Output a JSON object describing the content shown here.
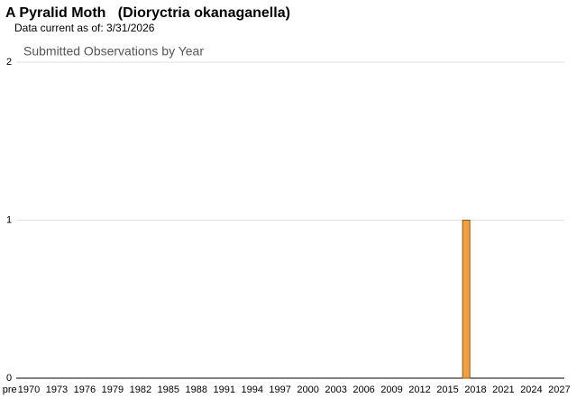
{
  "chart_data": {
    "type": "bar",
    "title": "A Pyralid Moth   (Dioryctria okanaganella)",
    "subtitle": "Data current as of: 3/31/2026",
    "chart_title": "Submitted Observations by Year",
    "categories": [
      "pre",
      "1970",
      null,
      null,
      "1973",
      null,
      null,
      "1976",
      null,
      null,
      "1979",
      null,
      null,
      "1982",
      null,
      null,
      "1985",
      null,
      null,
      "1988",
      null,
      null,
      "1991",
      null,
      null,
      "1994",
      null,
      null,
      "1997",
      null,
      null,
      "2000",
      null,
      null,
      "2003",
      null,
      null,
      "2006",
      null,
      null,
      "2009",
      null,
      null,
      "2012",
      null,
      null,
      "2015",
      null,
      null,
      "2018",
      null,
      null,
      "2021",
      null,
      null,
      "2024",
      null,
      null,
      "2027"
    ],
    "values": [
      0,
      0,
      0,
      0,
      0,
      0,
      0,
      0,
      0,
      0,
      0,
      0,
      0,
      0,
      0,
      0,
      0,
      0,
      0,
      0,
      0,
      0,
      0,
      0,
      0,
      0,
      0,
      0,
      0,
      0,
      0,
      0,
      0,
      0,
      0,
      0,
      0,
      0,
      0,
      0,
      0,
      0,
      0,
      0,
      0,
      0,
      0,
      0,
      1,
      0,
      0,
      0,
      0,
      0,
      0,
      0,
      0,
      0,
      0
    ],
    "color": "#f2a03d",
    "ylim": [
      0,
      2
    ],
    "yticks": [
      0,
      1,
      2
    ],
    "grid": true
  }
}
